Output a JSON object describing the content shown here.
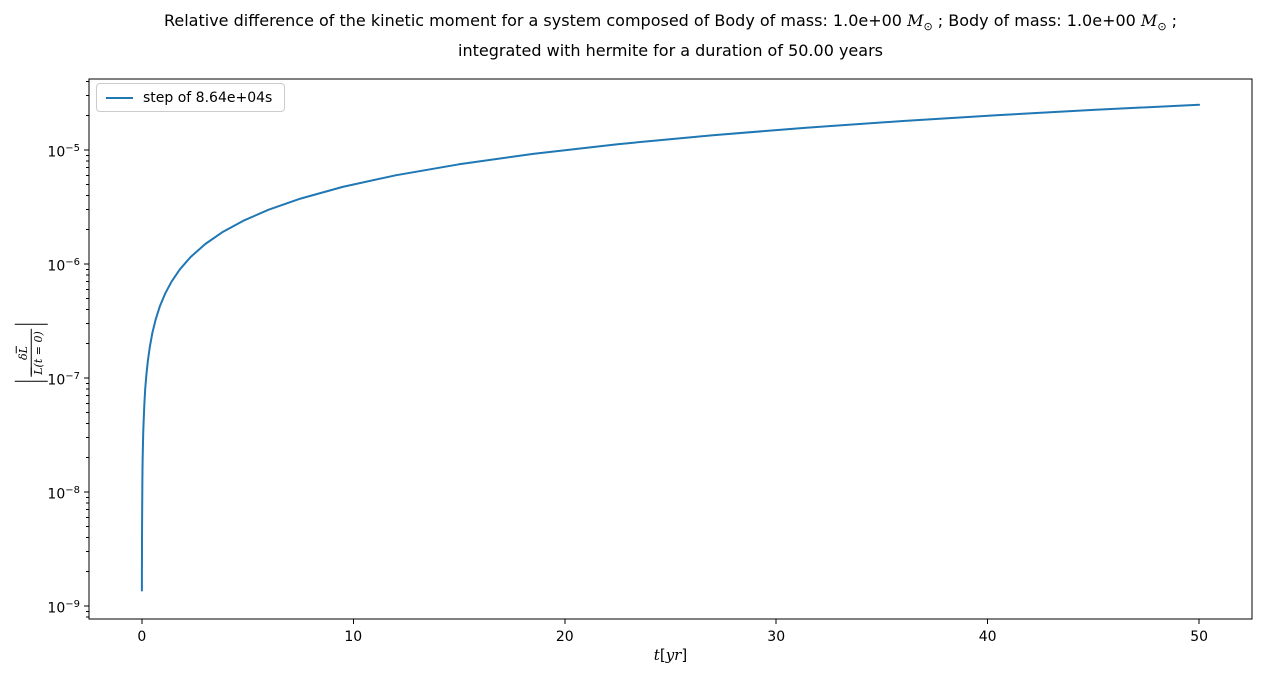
{
  "title": {
    "line1_seg1": "Relative difference of the kinetic moment for a system composed of Body of mass: 1.0e+00 ",
    "mass_symbol": "M",
    "sun_symbol": "⊙",
    "line1_seg2": " ; Body of mass: 1.0e+00 ",
    "line1_seg3": " ;",
    "line2": "integrated with hermite for a duration of 50.00 years"
  },
  "legend": {
    "label": "step of 8.64e+04s"
  },
  "xlabel": {
    "variable": "t",
    "bracket_open": "[",
    "unit": "yr",
    "bracket_close": "]"
  },
  "ylabel": {
    "delta": "δ",
    "L": "L",
    "denom_suffix": "(t = 0)"
  },
  "chart_data": {
    "type": "line",
    "title": "Relative difference of the kinetic moment for a system composed of Body of mass: 1.0e+00 M⊙ ; Body of mass: 1.0e+00 M⊙ ; integrated with hermite for a duration of 50.00 years",
    "xlabel": "t[yr]",
    "ylabel": "|δL̄/L̄(t=0)|",
    "yscale": "log",
    "grid": false,
    "legend_position": "upper left",
    "xlim": [
      -2.5,
      52.5
    ],
    "ylim": [
      7.7e-10,
      4.2e-05
    ],
    "x_ticks": [
      {
        "label": "0",
        "value": 0
      },
      {
        "label": "10",
        "value": 10
      },
      {
        "label": "20",
        "value": 20
      },
      {
        "label": "30",
        "value": 30
      },
      {
        "label": "40",
        "value": 40
      },
      {
        "label": "50",
        "value": 50
      }
    ],
    "y_ticks": [
      {
        "base": "10",
        "exp": "−5",
        "log": -5
      },
      {
        "base": "10",
        "exp": "−6",
        "log": -6
      },
      {
        "base": "10",
        "exp": "−7",
        "log": -7
      },
      {
        "base": "10",
        "exp": "−8",
        "log": -8
      },
      {
        "base": "10",
        "exp": "−9",
        "log": -9
      }
    ],
    "series": [
      {
        "name": "step of 8.64e+04s",
        "color": "#1f77b4",
        "points": [
          [
            0.00274,
            1.37e-09
          ],
          [
            0.004,
            2e-09
          ],
          [
            0.006,
            3e-09
          ],
          [
            0.008,
            4e-09
          ],
          [
            0.011,
            5.5e-09
          ],
          [
            0.015,
            7.5e-09
          ],
          [
            0.02,
            1e-08
          ],
          [
            0.027,
            1.35e-08
          ],
          [
            0.037,
            1.85e-08
          ],
          [
            0.05,
            2.5e-08
          ],
          [
            0.07,
            3.5e-08
          ],
          [
            0.09,
            4.5e-08
          ],
          [
            0.12,
            6e-08
          ],
          [
            0.16,
            8e-08
          ],
          [
            0.21,
            1.05e-07
          ],
          [
            0.28,
            1.4e-07
          ],
          [
            0.37,
            1.85e-07
          ],
          [
            0.5,
            2.5e-07
          ],
          [
            0.65,
            3.25e-07
          ],
          [
            0.85,
            4.25e-07
          ],
          [
            1.1,
            5.5e-07
          ],
          [
            1.4,
            7e-07
          ],
          [
            1.8,
            9e-07
          ],
          [
            2.3,
            1.15e-06
          ],
          [
            3,
            1.5e-06
          ],
          [
            3.8,
            1.9e-06
          ],
          [
            4.8,
            2.4e-06
          ],
          [
            6,
            3e-06
          ],
          [
            7.5,
            3.75e-06
          ],
          [
            9.5,
            4.75e-06
          ],
          [
            12,
            6e-06
          ],
          [
            15,
            7.5e-06
          ],
          [
            18.5,
            9.25e-06
          ],
          [
            22.5,
            1.125e-05
          ],
          [
            27,
            1.35e-05
          ],
          [
            31.5,
            1.575e-05
          ],
          [
            36,
            1.8e-05
          ],
          [
            40.5,
            2.025e-05
          ],
          [
            45,
            2.25e-05
          ],
          [
            50,
            2.5e-05
          ]
        ]
      }
    ]
  }
}
